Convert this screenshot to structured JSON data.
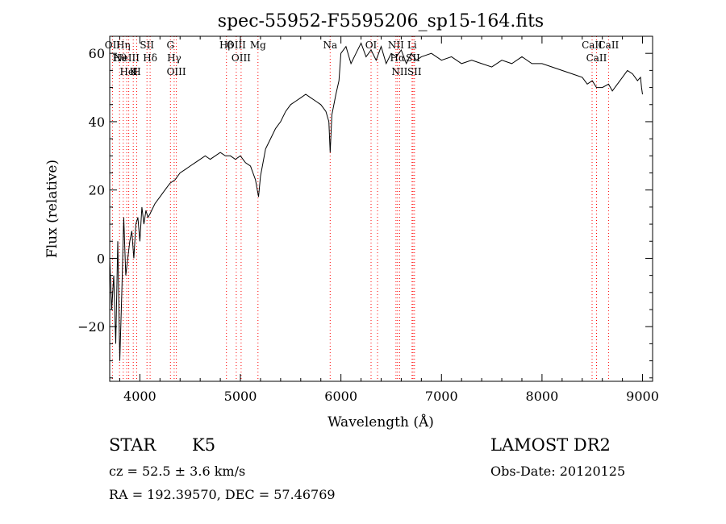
{
  "chart_data": {
    "type": "line",
    "title": "spec-55952-F5595206_sp15-164.fits",
    "xlabel": "Wavelength (Å)",
    "ylabel": "Flux (relative)",
    "xlim": [
      3700,
      9100
    ],
    "ylim": [
      -36,
      65
    ],
    "x_ticks": [
      4000,
      5000,
      6000,
      7000,
      8000,
      9000
    ],
    "y_ticks": [
      -20,
      0,
      20,
      40,
      60
    ],
    "x_tick_labels": [
      "4000",
      "5000",
      "6000",
      "7000",
      "8000",
      "9000"
    ],
    "y_tick_labels": [
      "−20",
      "0",
      "20",
      "40",
      "60"
    ],
    "grid": false,
    "series": [
      {
        "x": [
          3700,
          3720,
          3740,
          3760,
          3780,
          3800,
          3820,
          3840,
          3860,
          3880,
          3900,
          3920,
          3940,
          3960,
          3980,
          4000,
          4020,
          4040,
          4060,
          4080,
          4100,
          4150,
          4200,
          4250,
          4300,
          4350,
          4400,
          4450,
          4500,
          4550,
          4600,
          4650,
          4700,
          4750,
          4800,
          4850,
          4900,
          4950,
          5000,
          5050,
          5100,
          5150,
          5180,
          5200,
          5250,
          5300,
          5350,
          5400,
          5450,
          5500,
          5550,
          5600,
          5650,
          5700,
          5750,
          5800,
          5850,
          5880,
          5893,
          5910,
          5950,
          5980,
          6000,
          6050,
          6100,
          6150,
          6200,
          6250,
          6300,
          6350,
          6400,
          6450,
          6500,
          6550,
          6600,
          6650,
          6700,
          6750,
          6800,
          6900,
          7000,
          7100,
          7200,
          7300,
          7400,
          7500,
          7600,
          7700,
          7800,
          7900,
          8000,
          8100,
          8200,
          8300,
          8400,
          8450,
          8500,
          8542,
          8600,
          8662,
          8700,
          8750,
          8800,
          8850,
          8900,
          8950,
          8980,
          8990,
          9000
        ],
        "y": [
          0,
          -15,
          -5,
          -25,
          5,
          -30,
          -10,
          12,
          -5,
          0,
          5,
          8,
          0,
          10,
          12,
          5,
          15,
          10,
          14,
          12,
          13,
          16,
          18,
          20,
          22,
          23,
          25,
          26,
          27,
          28,
          29,
          30,
          29,
          30,
          31,
          30,
          30,
          29,
          30,
          28,
          27,
          23,
          18,
          24,
          32,
          35,
          38,
          40,
          43,
          45,
          46,
          47,
          48,
          47,
          46,
          45,
          43,
          40,
          31,
          42,
          48,
          52,
          60,
          62,
          57,
          60,
          63,
          59,
          61,
          58,
          62,
          57,
          60,
          59,
          61,
          57,
          60,
          58,
          59,
          60,
          58,
          59,
          57,
          58,
          57,
          56,
          58,
          57,
          59,
          57,
          57,
          56,
          55,
          54,
          53,
          51,
          52,
          50,
          50,
          51,
          49,
          51,
          53,
          55,
          54,
          52,
          53,
          50,
          48
        ]
      }
    ],
    "lines": [
      {
        "x": 3727,
        "labels": [
          "OII"
        ],
        "color": "#ff0000"
      },
      {
        "x": 3798,
        "labels": [
          "Hθ"
        ],
        "color": "#ff0000"
      },
      {
        "x": 3835,
        "labels": [
          "Hη"
        ],
        "color": "#ff0000"
      },
      {
        "x": 3869,
        "labels": [
          "NeIII"
        ],
        "color": "#ff0000"
      },
      {
        "x": 3889,
        "labels": [
          "HeI"
        ],
        "color": "#ff0000"
      },
      {
        "x": 3934,
        "labels": [
          "K"
        ],
        "color": "#ff0000"
      },
      {
        "x": 3969,
        "labels": [
          "H"
        ],
        "color": "#ff0000"
      },
      {
        "x": 4071,
        "labels": [
          "SII"
        ],
        "color": "#ff0000"
      },
      {
        "x": 4102,
        "labels": [
          "Hδ"
        ],
        "color": "#ff0000"
      },
      {
        "x": 4304,
        "labels": [
          "G"
        ],
        "color": "#ff0000"
      },
      {
        "x": 4341,
        "labels": [
          "Hγ"
        ],
        "color": "#ff0000"
      },
      {
        "x": 4363,
        "labels": [
          "OIII"
        ],
        "color": "#ff0000"
      },
      {
        "x": 4861,
        "labels": [
          "Hβ"
        ],
        "color": "#ff0000"
      },
      {
        "x": 4959,
        "labels": [
          "OIII"
        ],
        "color": "#ff0000"
      },
      {
        "x": 5007,
        "labels": [
          "OIII"
        ],
        "color": "#ff0000"
      },
      {
        "x": 5175,
        "labels": [
          "Mg"
        ],
        "color": "#ff0000"
      },
      {
        "x": 5893,
        "labels": [
          "Na"
        ],
        "color": "#ff0000"
      },
      {
        "x": 6300,
        "labels": [
          "OI"
        ],
        "color": "#ff0000"
      },
      {
        "x": 6364,
        "labels": [],
        "color": "#ff0000"
      },
      {
        "x": 6548,
        "labels": [
          "NII"
        ],
        "color": "#ff0000"
      },
      {
        "x": 6563,
        "labels": [
          "Hα"
        ],
        "color": "#ff0000"
      },
      {
        "x": 6584,
        "labels": [
          "NII"
        ],
        "color": "#ff0000"
      },
      {
        "x": 6707,
        "labels": [
          "Li"
        ],
        "color": "#ff0000"
      },
      {
        "x": 6717,
        "labels": [
          "SII"
        ],
        "color": "#ff0000"
      },
      {
        "x": 6731,
        "labels": [
          "SII"
        ],
        "color": "#ff0000"
      },
      {
        "x": 8498,
        "labels": [
          "CaII"
        ],
        "color": "#ff0000"
      },
      {
        "x": 8542,
        "labels": [
          "CaII"
        ],
        "color": "#ff0000"
      },
      {
        "x": 8662,
        "labels": [
          "CaII"
        ],
        "color": "#ff0000"
      }
    ]
  },
  "info": {
    "object_class": "STAR",
    "spec_type": "K5",
    "survey": "LAMOST DR2",
    "redshift": "cz = 52.5 ± 3.6 km/s",
    "obs_date": "Obs-Date: 20120125",
    "coords": "RA = 192.39570, DEC =  57.46769"
  },
  "colors": {
    "spectrum": "#000000",
    "line_markers": "#ff0000",
    "axes": "#000000"
  }
}
